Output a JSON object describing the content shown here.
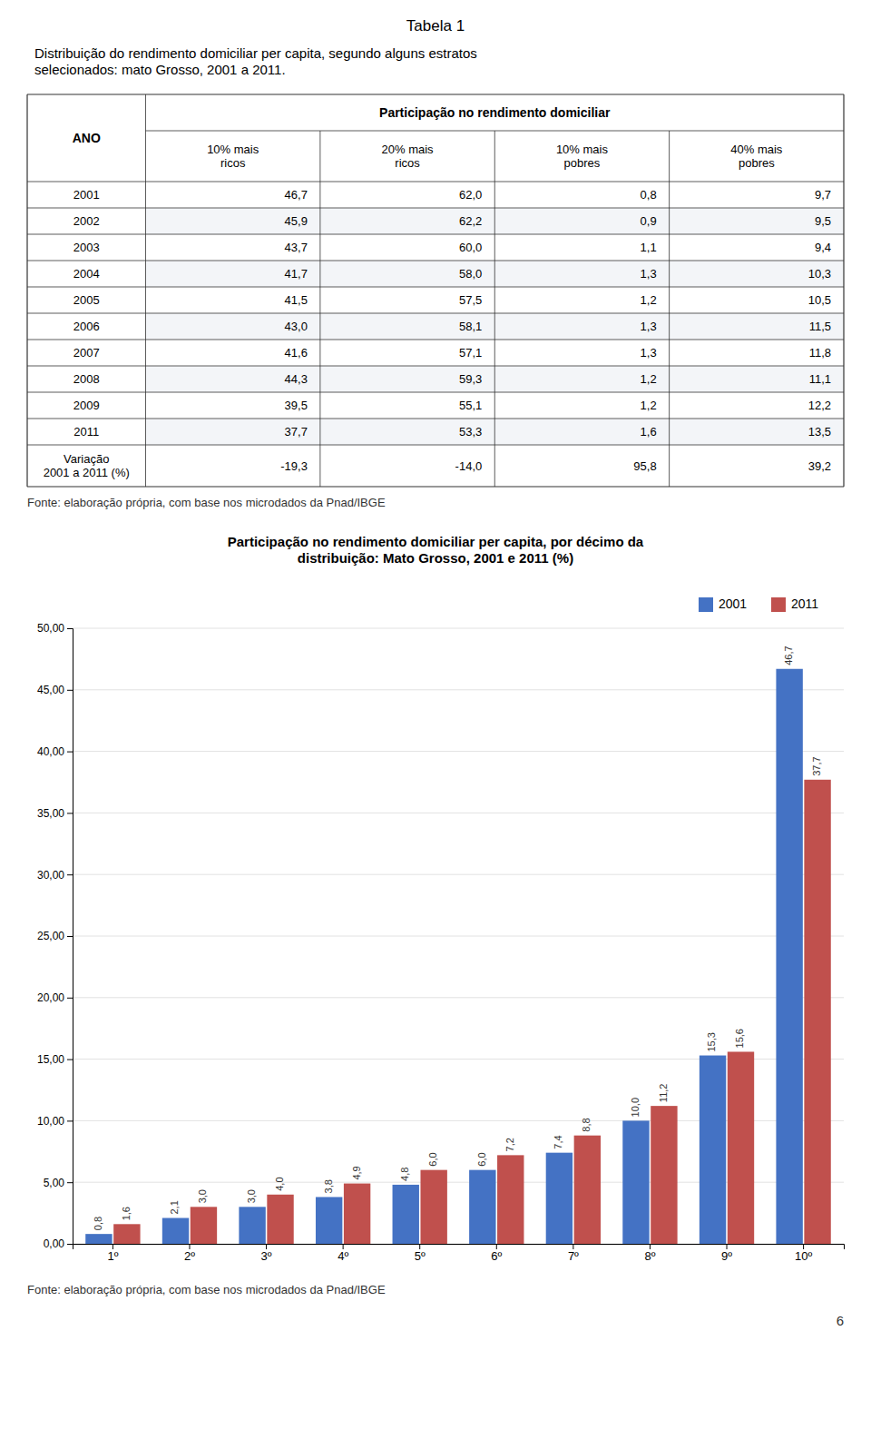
{
  "chart_data": [
    {
      "type": "table",
      "title": "Tabela 1",
      "subtitle": "Distribuição do rendimento domiciliar per capita, segundo alguns estratos\nselecionados: mato Grosso, 2001 a 2011.",
      "header": "Participação no rendimento domiciliar",
      "row_label": "ANO",
      "categories": [
        "2001",
        "2002",
        "2003",
        "2004",
        "2005",
        "2006",
        "2007",
        "2008",
        "2009",
        "2011",
        "Variação\n2001 a 2011 (%)"
      ],
      "series": [
        {
          "name": "10% mais\nricos",
          "values": [
            46.7,
            45.9,
            43.7,
            41.7,
            41.5,
            43.0,
            41.6,
            44.3,
            39.5,
            37.7,
            -19.3
          ],
          "value_labels": [
            "46,7",
            "45,9",
            "43,7",
            "41,7",
            "41,5",
            "43,0",
            "41,6",
            "44,3",
            "39,5",
            "37,7",
            "-19,3"
          ]
        },
        {
          "name": "20% mais\nricos",
          "values": [
            62.0,
            62.2,
            60.0,
            58.0,
            57.5,
            58.1,
            57.1,
            59.3,
            55.1,
            53.3,
            -14.0
          ],
          "value_labels": [
            "62,0",
            "62,2",
            "60,0",
            "58,0",
            "57,5",
            "58,1",
            "57,1",
            "59,3",
            "55,1",
            "53,3",
            "-14,0"
          ]
        },
        {
          "name": "10% mais\npobres",
          "values": [
            0.8,
            0.9,
            1.1,
            1.3,
            1.2,
            1.3,
            1.3,
            1.2,
            1.2,
            1.6,
            95.8
          ],
          "value_labels": [
            "0,8",
            "0,9",
            "1,1",
            "1,3",
            "1,2",
            "1,3",
            "1,3",
            "1,2",
            "1,2",
            "1,6",
            "95,8"
          ]
        },
        {
          "name": "40% mais\npobres",
          "values": [
            9.7,
            9.5,
            9.4,
            10.3,
            10.5,
            11.5,
            11.8,
            11.1,
            12.2,
            13.5,
            39.2
          ],
          "value_labels": [
            "9,7",
            "9,5",
            "9,4",
            "10,3",
            "10,5",
            "11,5",
            "11,8",
            "11,1",
            "12,2",
            "13,5",
            "39,2"
          ]
        }
      ],
      "annotations": [
        "Fonte: elaboração própria, com base nos microdados da Pnad/IBGE"
      ]
    },
    {
      "type": "bar",
      "title": "Participação no rendimento domiciliar per capita, por décimo da\ndistribuição: Mato Grosso, 2001 e 2011 (%)",
      "categories": [
        "1º",
        "2º",
        "3º",
        "4º",
        "5º",
        "6º",
        "7º",
        "8º",
        "9º",
        "10º"
      ],
      "series": [
        {
          "name": "2001",
          "color": "#4472C4",
          "values": [
            0.8,
            2.1,
            3.0,
            3.8,
            4.8,
            6.0,
            7.4,
            10.0,
            15.3,
            46.7
          ],
          "value_labels": [
            "0,8",
            "2,1",
            "3,0",
            "3,8",
            "4,8",
            "6,0",
            "7,4",
            "10,0",
            "15,3",
            "46,7"
          ]
        },
        {
          "name": "2011",
          "color": "#C0504D",
          "values": [
            1.6,
            3.0,
            4.0,
            4.9,
            6.0,
            7.2,
            8.8,
            11.2,
            15.6,
            37.7
          ],
          "value_labels": [
            "1,6",
            "3,0",
            "4,0",
            "4,9",
            "6,0",
            "7,2",
            "8,8",
            "11,2",
            "15,6",
            "37,7"
          ]
        }
      ],
      "ylim": [
        0,
        50
      ],
      "yticks": [
        {
          "value": 0.0,
          "label": "0,00"
        },
        {
          "value": 5.0,
          "label": "5,00"
        },
        {
          "value": 10.0,
          "label": "10,00"
        },
        {
          "value": 15.0,
          "label": "15,00"
        },
        {
          "value": 20.0,
          "label": "20,00"
        },
        {
          "value": 25.0,
          "label": "25,00"
        },
        {
          "value": 30.0,
          "label": "30,00"
        },
        {
          "value": 35.0,
          "label": "35,00"
        },
        {
          "value": 40.0,
          "label": "40,00"
        },
        {
          "value": 45.0,
          "label": "45,00"
        },
        {
          "value": 50.0,
          "label": "50,00"
        }
      ],
      "grid": true,
      "data_labels": true,
      "legend": "upper right",
      "annotations": [
        "Fonte: elaboração própria, com base nos microdados da Pnad/IBGE",
        "6"
      ]
    }
  ]
}
